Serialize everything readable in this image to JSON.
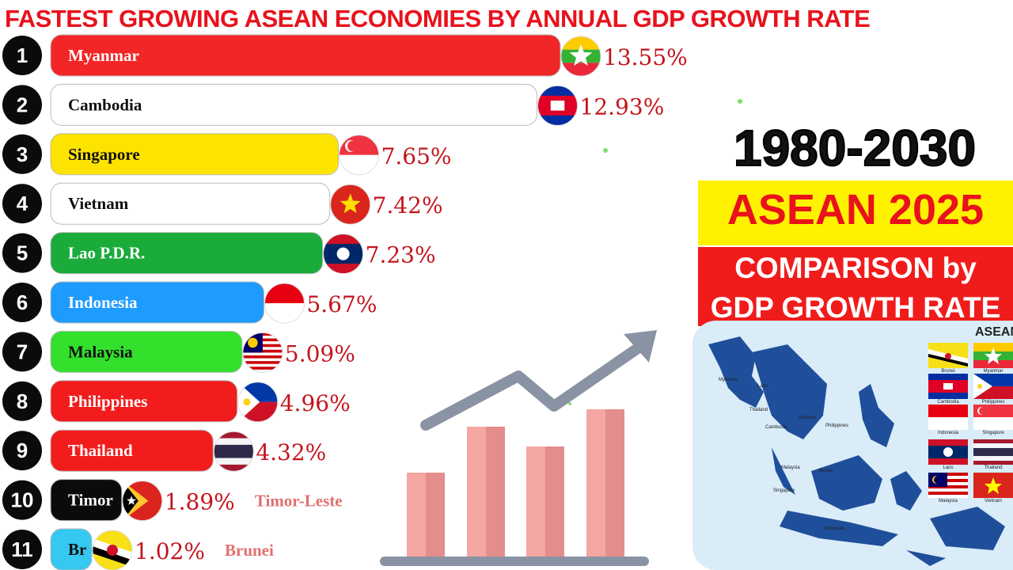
{
  "title": "FASTEST GROWING ASEAN ECONOMIES BY ANNUAL GDP GROWTH RATE",
  "side_panel": {
    "range": "1980-2030",
    "headline": "ASEAN 2025",
    "subline1": "COMPARISON by",
    "subline2": "GDP GROWTH RATE"
  },
  "map": {
    "title": "ASEAN",
    "labels": [
      "Myanmar",
      "Laos",
      "Thailand",
      "Cambodia",
      "Vietnam",
      "Philippines",
      "Malaysia",
      "Brunei",
      "Singapore",
      "Indonesia"
    ],
    "flags": [
      "Brunei",
      "Myanmar",
      "Cambodia",
      "Philippines",
      "Indonesia",
      "Singapore",
      "Laos",
      "Thailand",
      "Malaysia",
      "Vietnam"
    ]
  },
  "chart_data": {
    "type": "bar",
    "orientation": "horizontal",
    "title": "FASTEST GROWING ASEAN ECONOMIES BY ANNUAL GDP GROWTH RATE",
    "ranks": [
      1,
      2,
      3,
      4,
      5,
      6,
      7,
      8,
      9,
      10,
      11
    ],
    "categories": [
      "Myanmar",
      "Cambodia",
      "Singapore",
      "Vietnam",
      "Lao P.D.R.",
      "Indonesia",
      "Malaysia",
      "Philippines",
      "Thailand",
      "Timor",
      "Br"
    ],
    "full_names": [
      "",
      "",
      "",
      "",
      "",
      "",
      "",
      "",
      "",
      "Timor-Leste",
      "Brunei"
    ],
    "values": [
      13.55,
      12.93,
      7.65,
      7.42,
      7.23,
      5.67,
      5.09,
      4.96,
      4.32,
      1.89,
      1.02
    ],
    "value_labels": [
      "13.55%",
      "12.93%",
      "7.65%",
      "7.42%",
      "7.23%",
      "5.67%",
      "5.09%",
      "4.96%",
      "4.32%",
      "1.89%",
      "1.02%"
    ],
    "colors": [
      "#f22626",
      "#ffffff",
      "#fde300",
      "#ffffff",
      "#1aab3a",
      "#1e9bff",
      "#33e02c",
      "#f21c1c",
      "#f21c1c",
      "#0b0b0b",
      "#35c8f0"
    ],
    "label_colors": [
      "#ffffff",
      "#111111",
      "#111111",
      "#111111",
      "#ffffff",
      "#ffffff",
      "#111111",
      "#ffffff",
      "#ffffff",
      "#ffffff",
      "#111111"
    ],
    "flags": [
      "myanmar",
      "cambodia",
      "singapore",
      "vietnam",
      "laos",
      "indonesia",
      "malaysia",
      "philippines",
      "thailand",
      "timor-leste",
      "brunei"
    ],
    "value_color": "#c4141c"
  }
}
